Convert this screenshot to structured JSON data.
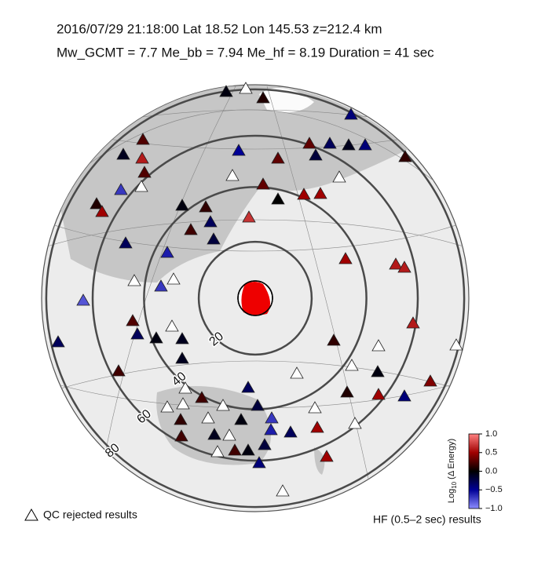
{
  "header": {
    "line1": "2016/07/29  21:18:00   Lat 18.52    Lon 145.53   z=212.4 km",
    "line2": "Mw_GCMT = 7.7    Me_bb = 7.94    Me_hf = 8.19    Duration = 41 sec"
  },
  "distance_rings": [
    20,
    40,
    60,
    80
  ],
  "stations": [
    -0.05,
    null,
    0.1,
    -0.4,
    0.25,
    -0.1,
    0.6,
    -0.5,
    0.3,
    -0.2,
    -0.3,
    -0.1,
    -0.4,
    0.15,
    0.3,
    0.25,
    -0.7,
    null,
    null,
    0.3,
    null,
    0.5,
    0.5,
    0.1,
    0.5,
    -0.05,
    0.15,
    0.0,
    0.7,
    0.2,
    -0.2,
    -0.3,
    -0.3,
    -0.6,
    0.5,
    0.6,
    0.6,
    null,
    -0.7,
    null,
    -0.8,
    0.25,
    0.6,
    -0.3,
    -0.3,
    -0.05,
    null,
    -0.1,
    0.15,
    null,
    null,
    -0.1,
    null,
    0.2,
    null,
    -0.05,
    0.4,
    null,
    -0.3,
    0.1,
    0.5,
    -0.4,
    null,
    null,
    0.2,
    null,
    -0.2,
    -0.7,
    null,
    0.15,
    null,
    -0.05,
    -0.6,
    -0.3,
    0.5,
    null,
    0.2,
    -0.1,
    null,
    -0.2,
    -0.05,
    0.2,
    null,
    -0.4,
    0.5,
    null
  ],
  "colorbar": {
    "label_base": "Log",
    "label_sub": "10",
    "label_rest": " (Δ Energy)",
    "lim": [
      -1,
      1
    ],
    "ticks": [
      {
        "value": 1,
        "label": "1.0"
      },
      {
        "value": 0.5,
        "label": "0.5"
      },
      {
        "value": 0,
        "label": "0.0"
      },
      {
        "value": -0.5,
        "label": "−0.5"
      },
      {
        "value": -1,
        "label": "−1.0"
      }
    ]
  },
  "legend": {
    "qc": "QC rejected results",
    "hf": "HF (0.5–2 sec) results"
  }
}
